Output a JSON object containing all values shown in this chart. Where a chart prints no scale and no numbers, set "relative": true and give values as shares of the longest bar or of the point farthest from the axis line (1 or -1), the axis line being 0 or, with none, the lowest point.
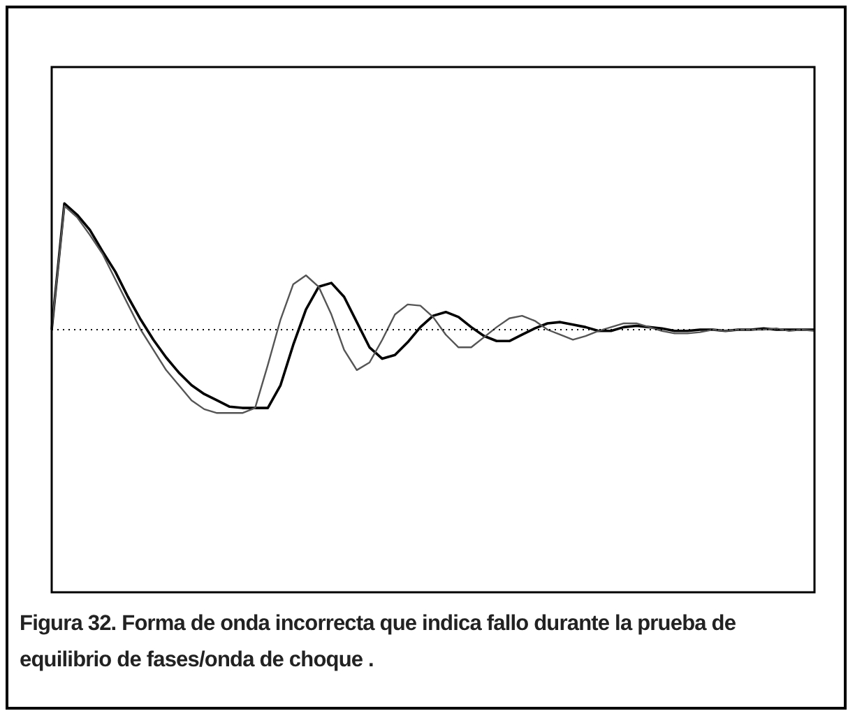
{
  "chart_data": {
    "type": "line",
    "relative": true,
    "legend": false,
    "marker": "none",
    "line_style": "solid",
    "categories": [
      null,
      null,
      null,
      null,
      null,
      null,
      null,
      null,
      null,
      null,
      null,
      null,
      null,
      null,
      null,
      null,
      null,
      null,
      null,
      null,
      null,
      null,
      null,
      null,
      null,
      null,
      null,
      null,
      null,
      null,
      null,
      null,
      null,
      null,
      null,
      null,
      null,
      null,
      null,
      null,
      null,
      null,
      null,
      null,
      null,
      null,
      null,
      null,
      null,
      null,
      null,
      null,
      null,
      null,
      null,
      null,
      null,
      null,
      null,
      null,
      null
    ],
    "series": [
      {
        "color": "#555555",
        "values": [
          0,
          0.98,
          0.89,
          0.75,
          0.6,
          0.4,
          0.2,
          0,
          -0.16,
          -0.32,
          -0.44,
          -0.56,
          -0.63,
          -0.66,
          -0.66,
          -0.66,
          -0.62,
          -0.28,
          0.08,
          0.36,
          0.43,
          0.34,
          0.12,
          -0.16,
          -0.32,
          -0.26,
          -0.08,
          0.12,
          0.2,
          0.19,
          0.1,
          -0.04,
          -0.14,
          -0.14,
          -0.06,
          0.02,
          0.09,
          0.11,
          0.07,
          0,
          -0.04,
          -0.08,
          -0.05,
          -0.01,
          0.02,
          0.05,
          0.05,
          0.02,
          -0.01,
          -0.03,
          -0.03,
          -0.02,
          0,
          -0.01,
          0,
          0,
          0,
          0.01,
          -0.01,
          0,
          -0.01
        ]
      },
      {
        "color": "#000000",
        "values": [
          0,
          1,
          0.91,
          0.79,
          0.62,
          0.46,
          0.26,
          0.08,
          -0.08,
          -0.22,
          -0.34,
          -0.44,
          -0.51,
          -0.56,
          -0.61,
          -0.62,
          -0.62,
          -0.62,
          -0.44,
          -0.12,
          0.16,
          0.34,
          0.37,
          0.26,
          0.06,
          -0.14,
          -0.23,
          -0.2,
          -0.1,
          0.02,
          0.11,
          0.14,
          0.1,
          0.02,
          -0.05,
          -0.09,
          -0.09,
          -0.04,
          0.01,
          0.05,
          0.06,
          0.04,
          0.02,
          -0.01,
          -0.01,
          0.02,
          0.03,
          0.02,
          0.01,
          -0.01,
          -0.01,
          0,
          0,
          -0.01,
          0,
          0,
          0.01,
          0,
          0,
          0,
          0
        ]
      }
    ],
    "ref_lines": [
      {
        "axis": "y",
        "value": 0,
        "line_style": "dotted",
        "color": "#000000"
      }
    ],
    "annotations": [
      "Figura 32. Forma de onda incorrecta que indica fallo durante la prueba de equilibrio de fases/onda de choque ."
    ]
  }
}
